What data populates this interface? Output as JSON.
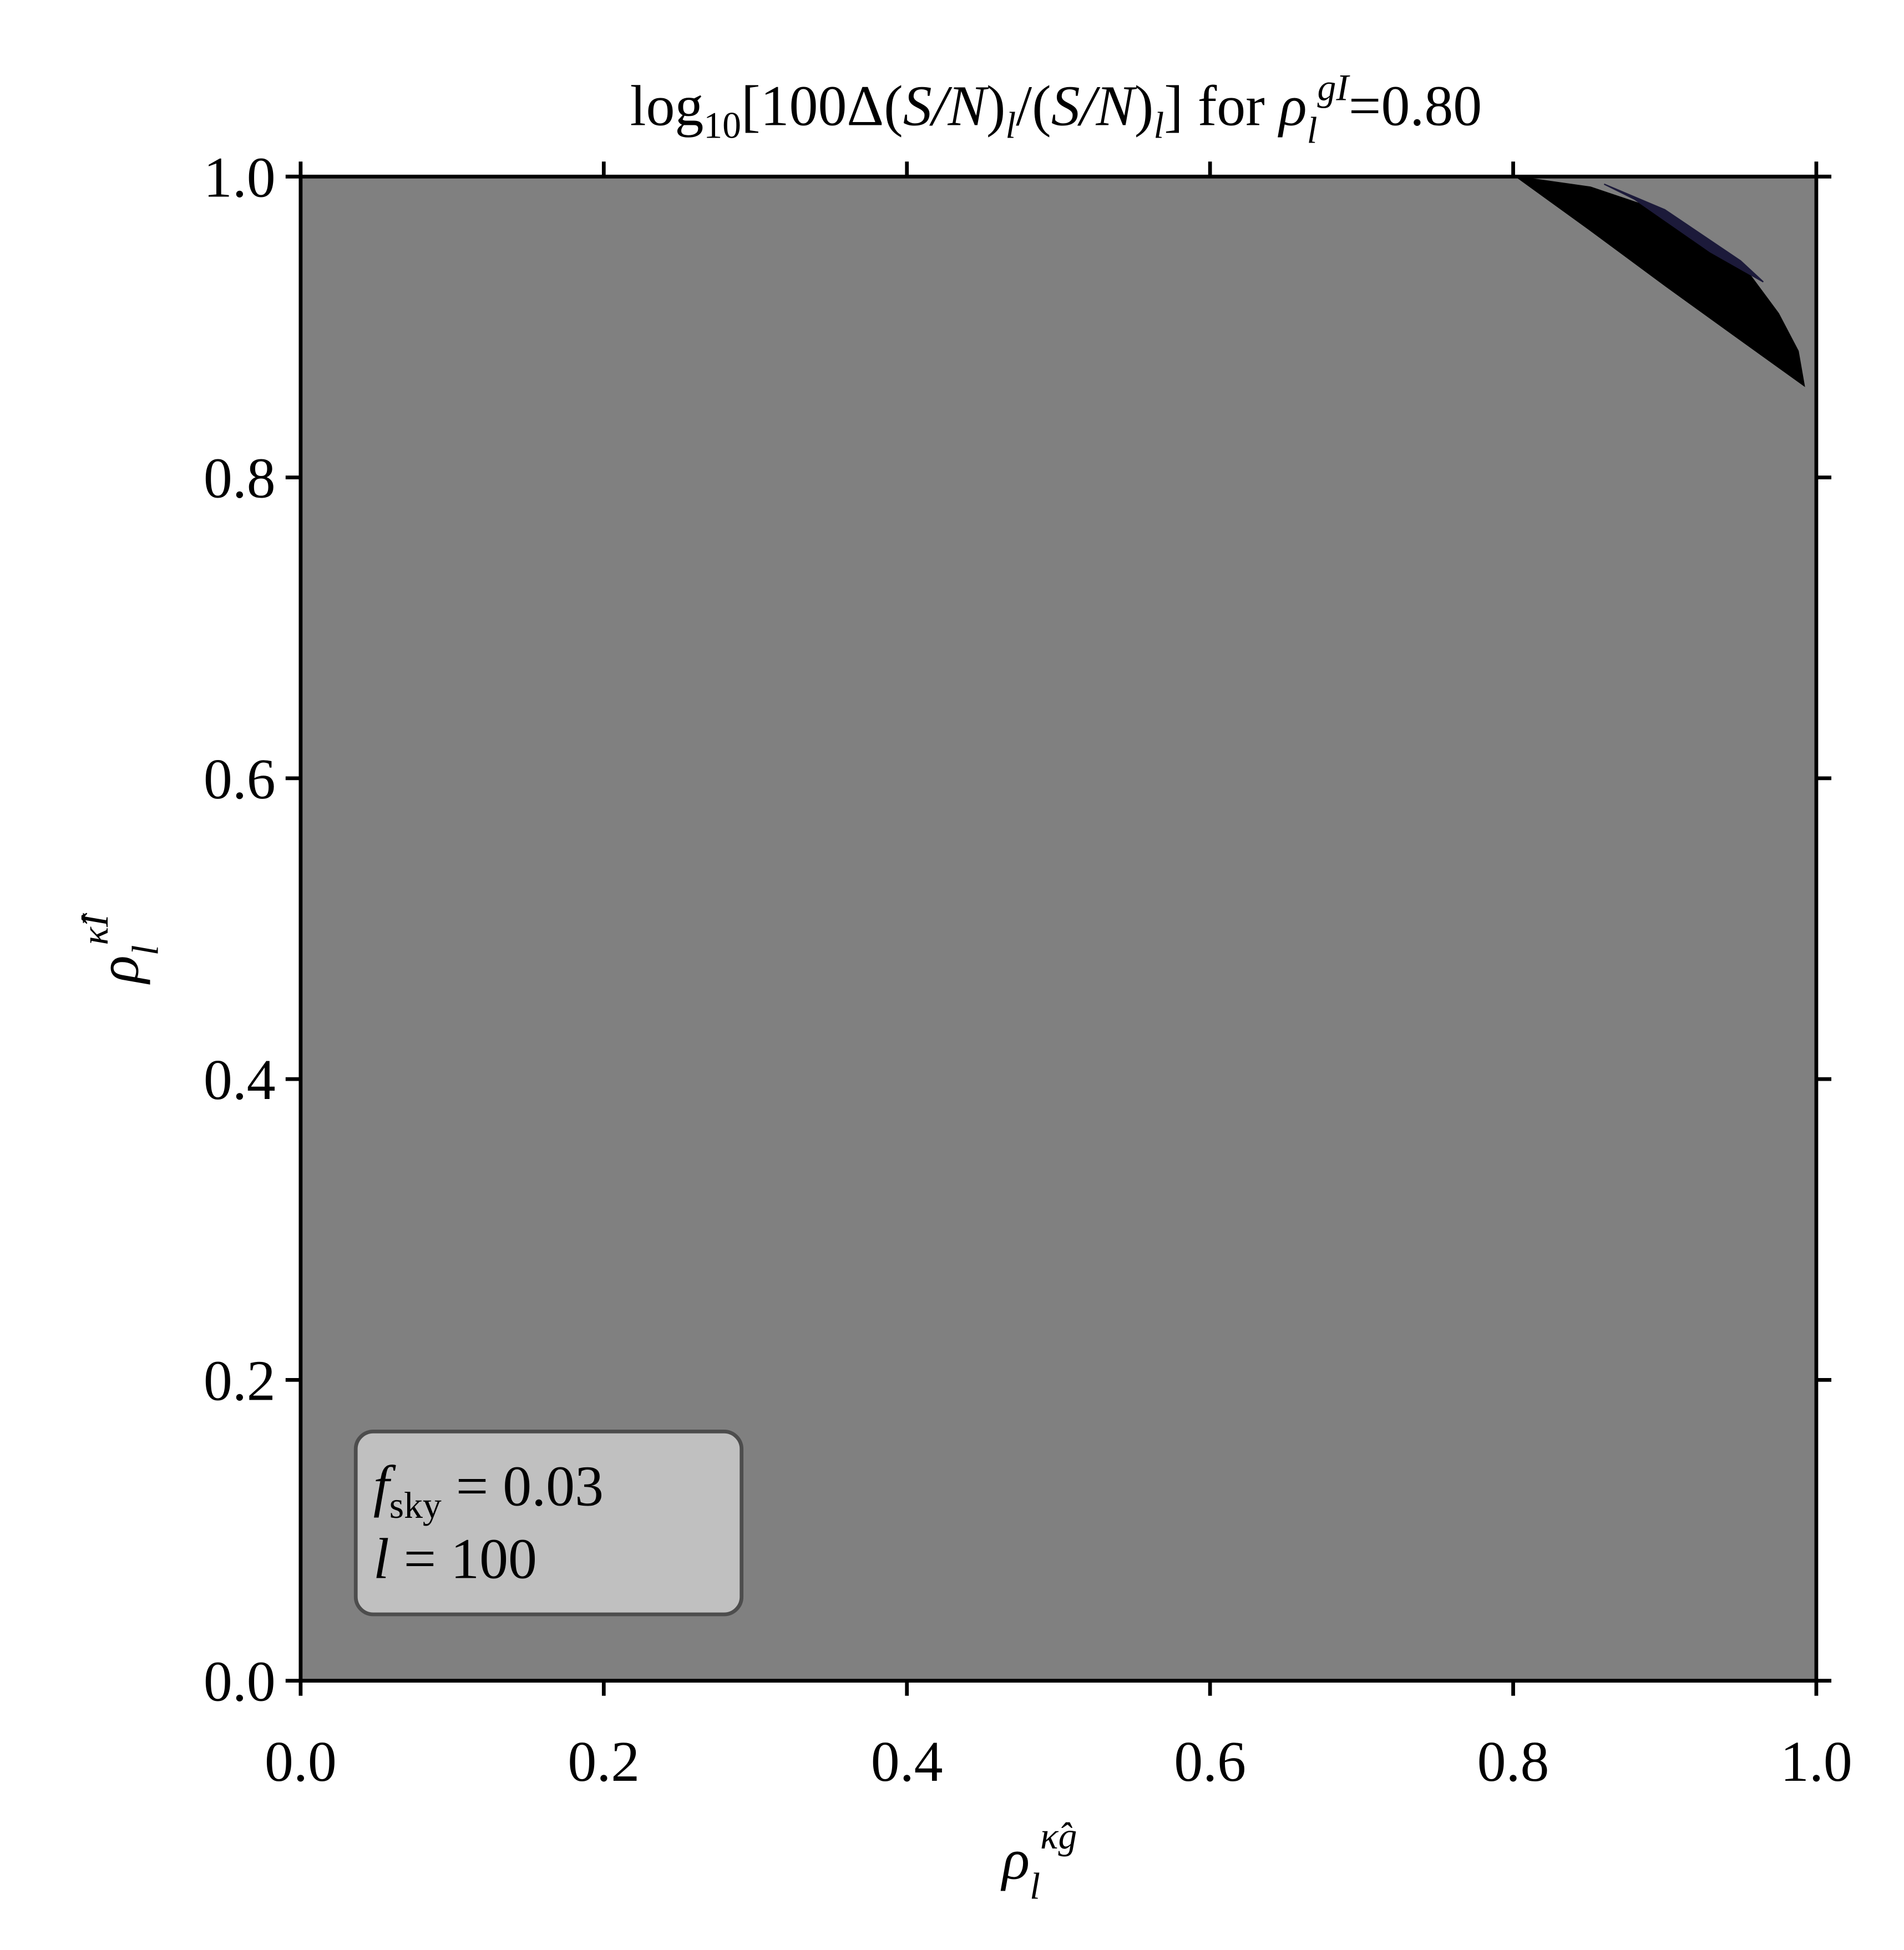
{
  "chart_data": {
    "type": "contour",
    "title": [
      "log",
      "10",
      "[100Δ(",
      "S/N",
      ")",
      "l",
      "/(",
      "S/N",
      ")",
      "l",
      "] for ",
      "ρ",
      "l",
      "gI",
      "=0.80"
    ],
    "xlabel": [
      "ρ",
      "l",
      "κ̂g"
    ],
    "ylabel": [
      "ρ",
      "l",
      "κ̂I"
    ],
    "annotation": [
      [
        "f",
        "sky",
        " = 0.03"
      ],
      [
        "l",
        " = 100"
      ]
    ],
    "background": "#808080",
    "xlim": [
      0,
      1
    ],
    "ylim": [
      0,
      1
    ],
    "xticks": [
      {
        "value": 0,
        "label": "0.0"
      },
      0.2,
      0.4,
      0.6,
      0.8,
      {
        "value": 1,
        "label": "1.0"
      }
    ],
    "yticks": [
      {
        "value": 0,
        "label": "0.0"
      },
      0.2,
      0.4,
      0.6,
      0.8,
      {
        "value": 1,
        "label": "1.0"
      }
    ],
    "series": [
      {
        "color": "#000000",
        "x": [
          0.802,
          0.851,
          0.901,
          0.95,
          0.975,
          0.988,
          0.992,
          0.945,
          0.901,
          0.85
        ],
        "y": [
          1.0,
          0.993,
          0.976,
          0.943,
          0.909,
          0.884,
          0.861,
          0.895,
          0.927,
          0.965
        ]
      },
      {
        "color": "#1c1a3a",
        "x": [
          0.86,
          0.9,
          0.95,
          0.965,
          0.93,
          0.88
        ],
        "y": [
          0.995,
          0.978,
          0.944,
          0.93,
          0.95,
          0.985
        ]
      }
    ]
  }
}
